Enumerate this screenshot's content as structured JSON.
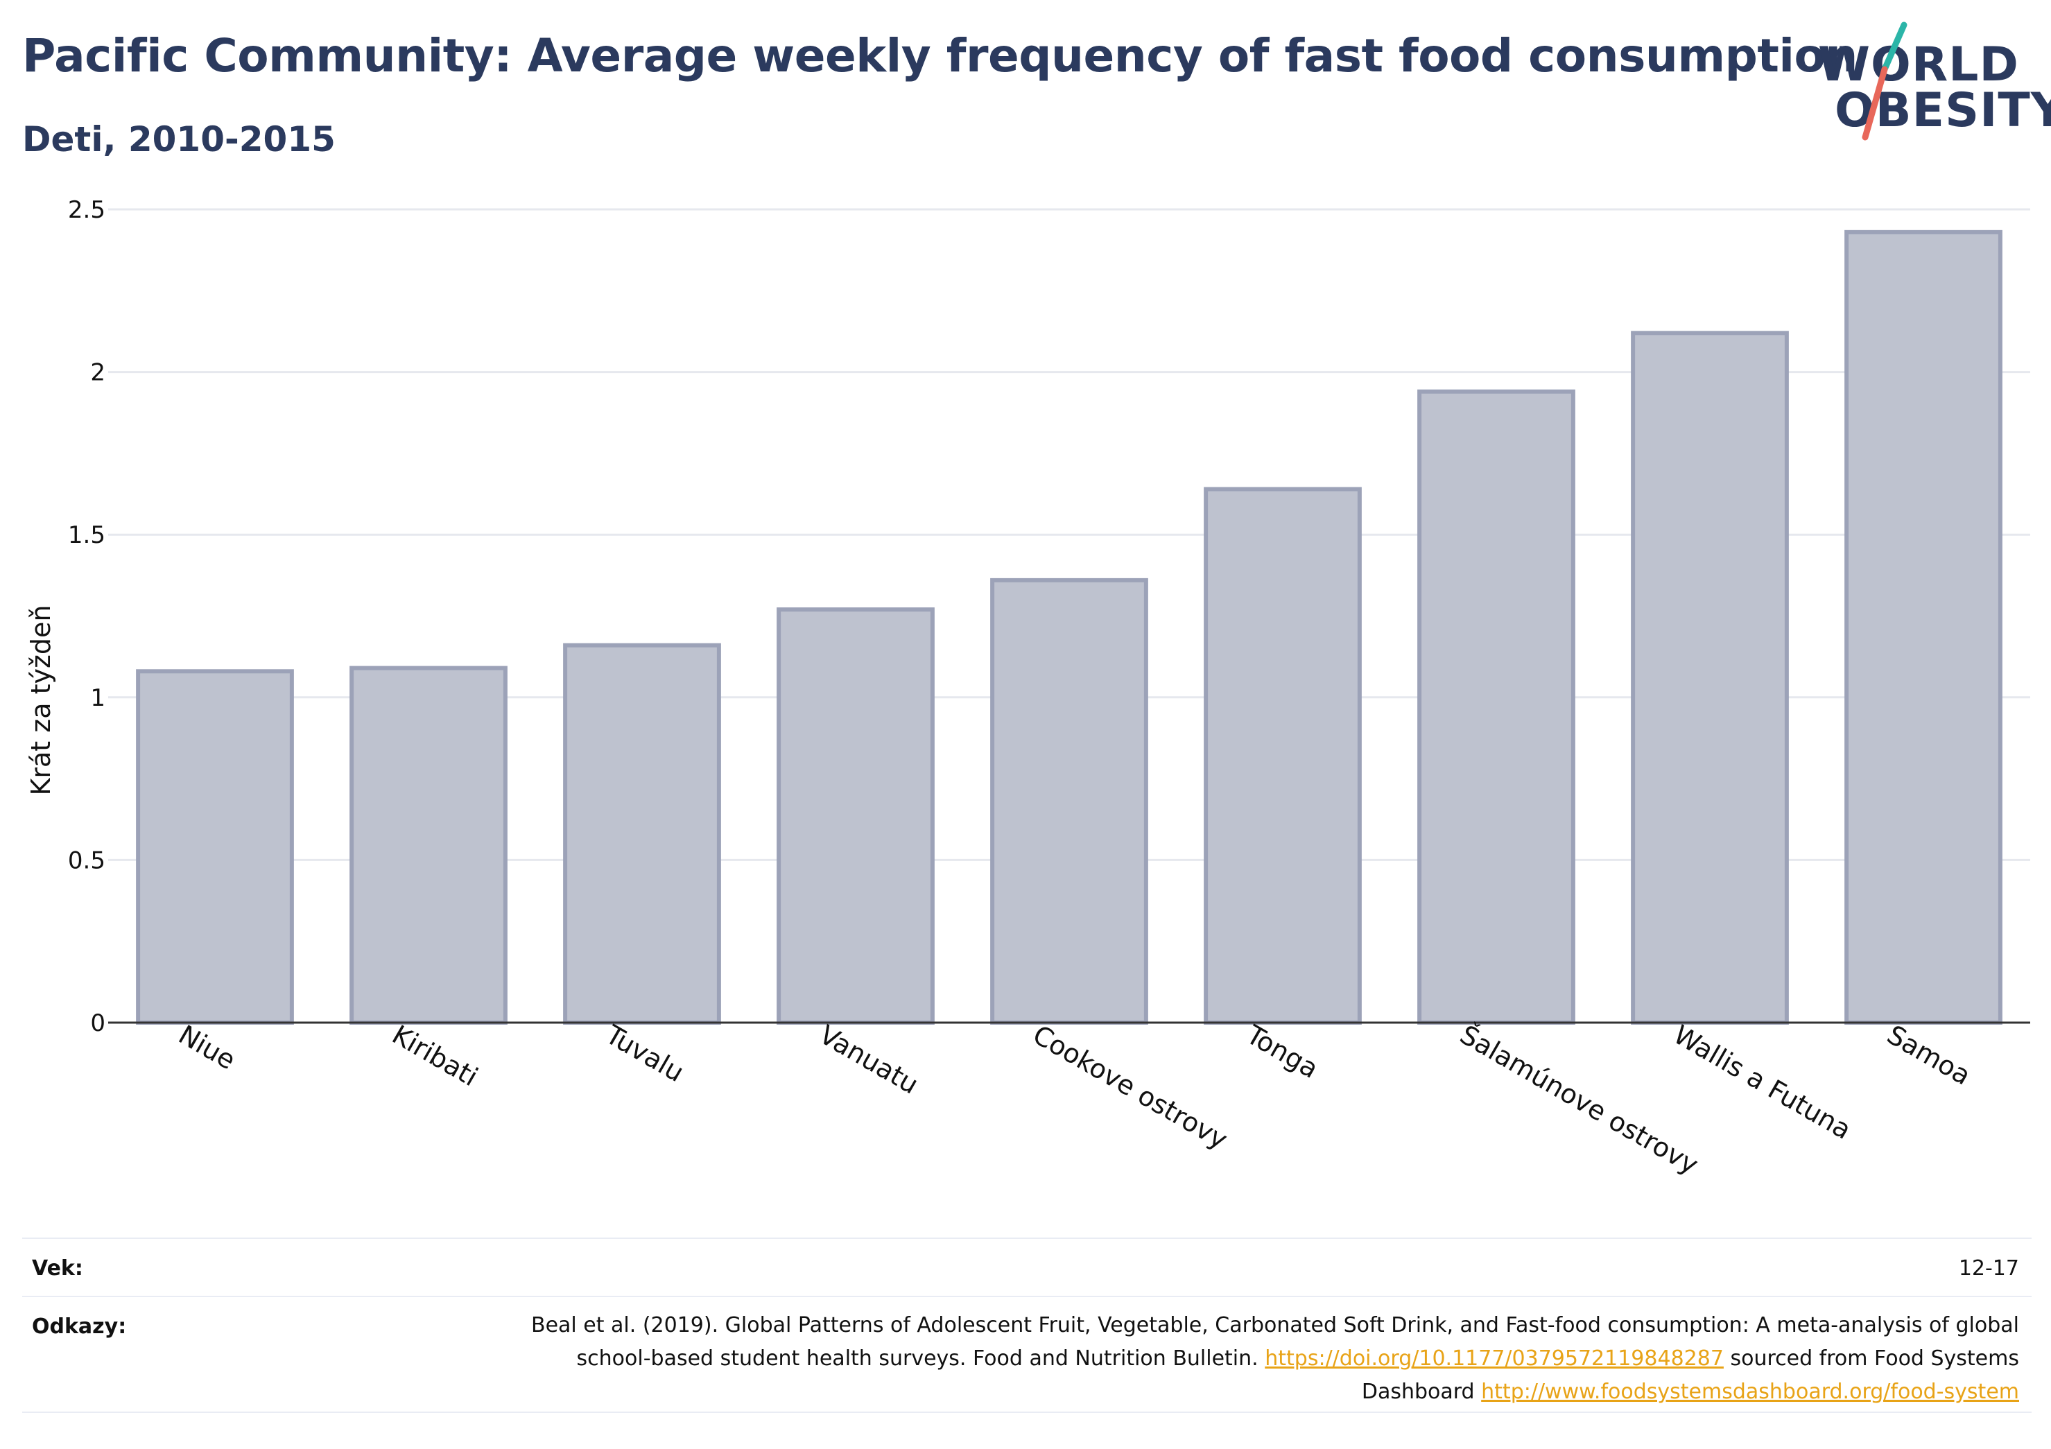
{
  "header": {
    "title": "Pacific Community: Average weekly frequency of fast food consumption",
    "subtitle": "Deti, 2010-2015"
  },
  "logo": {
    "line1": "WORLD",
    "line2": "OBESITY",
    "colors": {
      "text": "#2b3a5e",
      "slash_top": "#2bb5a8",
      "slash_bottom": "#e8675a"
    }
  },
  "chart_data": {
    "type": "bar",
    "categories": [
      "Niue",
      "Kiribati",
      "Tuvalu",
      "Vanuatu",
      "Cookove ostrovy",
      "Tonga",
      "Šalamúnove ostrovy",
      "Wallis a Futuna",
      "Samoa"
    ],
    "values": [
      1.08,
      1.09,
      1.16,
      1.27,
      1.36,
      1.64,
      1.94,
      2.12,
      2.43
    ],
    "ylabel": "Krát za týždeň",
    "xlabel": "",
    "ylim": [
      0,
      2.5
    ],
    "yticks": [
      0,
      0.5,
      1,
      1.5,
      2,
      2.5
    ],
    "ytick_labels": [
      "0",
      "0.5",
      "1",
      "1.5",
      "2",
      "2.5"
    ],
    "grid": true,
    "colors": {
      "bar_fill": "#bec2cf",
      "bar_stroke": "#9ca2b8",
      "grid": "#e6e8ee",
      "axis": "#333333"
    }
  },
  "footer": {
    "age_label": "Vek:",
    "age_value": "12-17",
    "refs_label": "Odkazy:",
    "ref_text_1": "Beal et al. (2019). Global Patterns of Adolescent Fruit, Vegetable, Carbonated Soft Drink, and Fast-food consumption: A meta-analysis of global school-based student health surveys. Food and Nutrition Bulletin.",
    "ref_link_1": "https://doi.org/10.1177/0379572119848287",
    "ref_text_2": "sourced from Food Systems Dashboard",
    "ref_link_2": "http://www.foodsystemsdashboard.org/food-system",
    "link_color": "#e8a317"
  }
}
